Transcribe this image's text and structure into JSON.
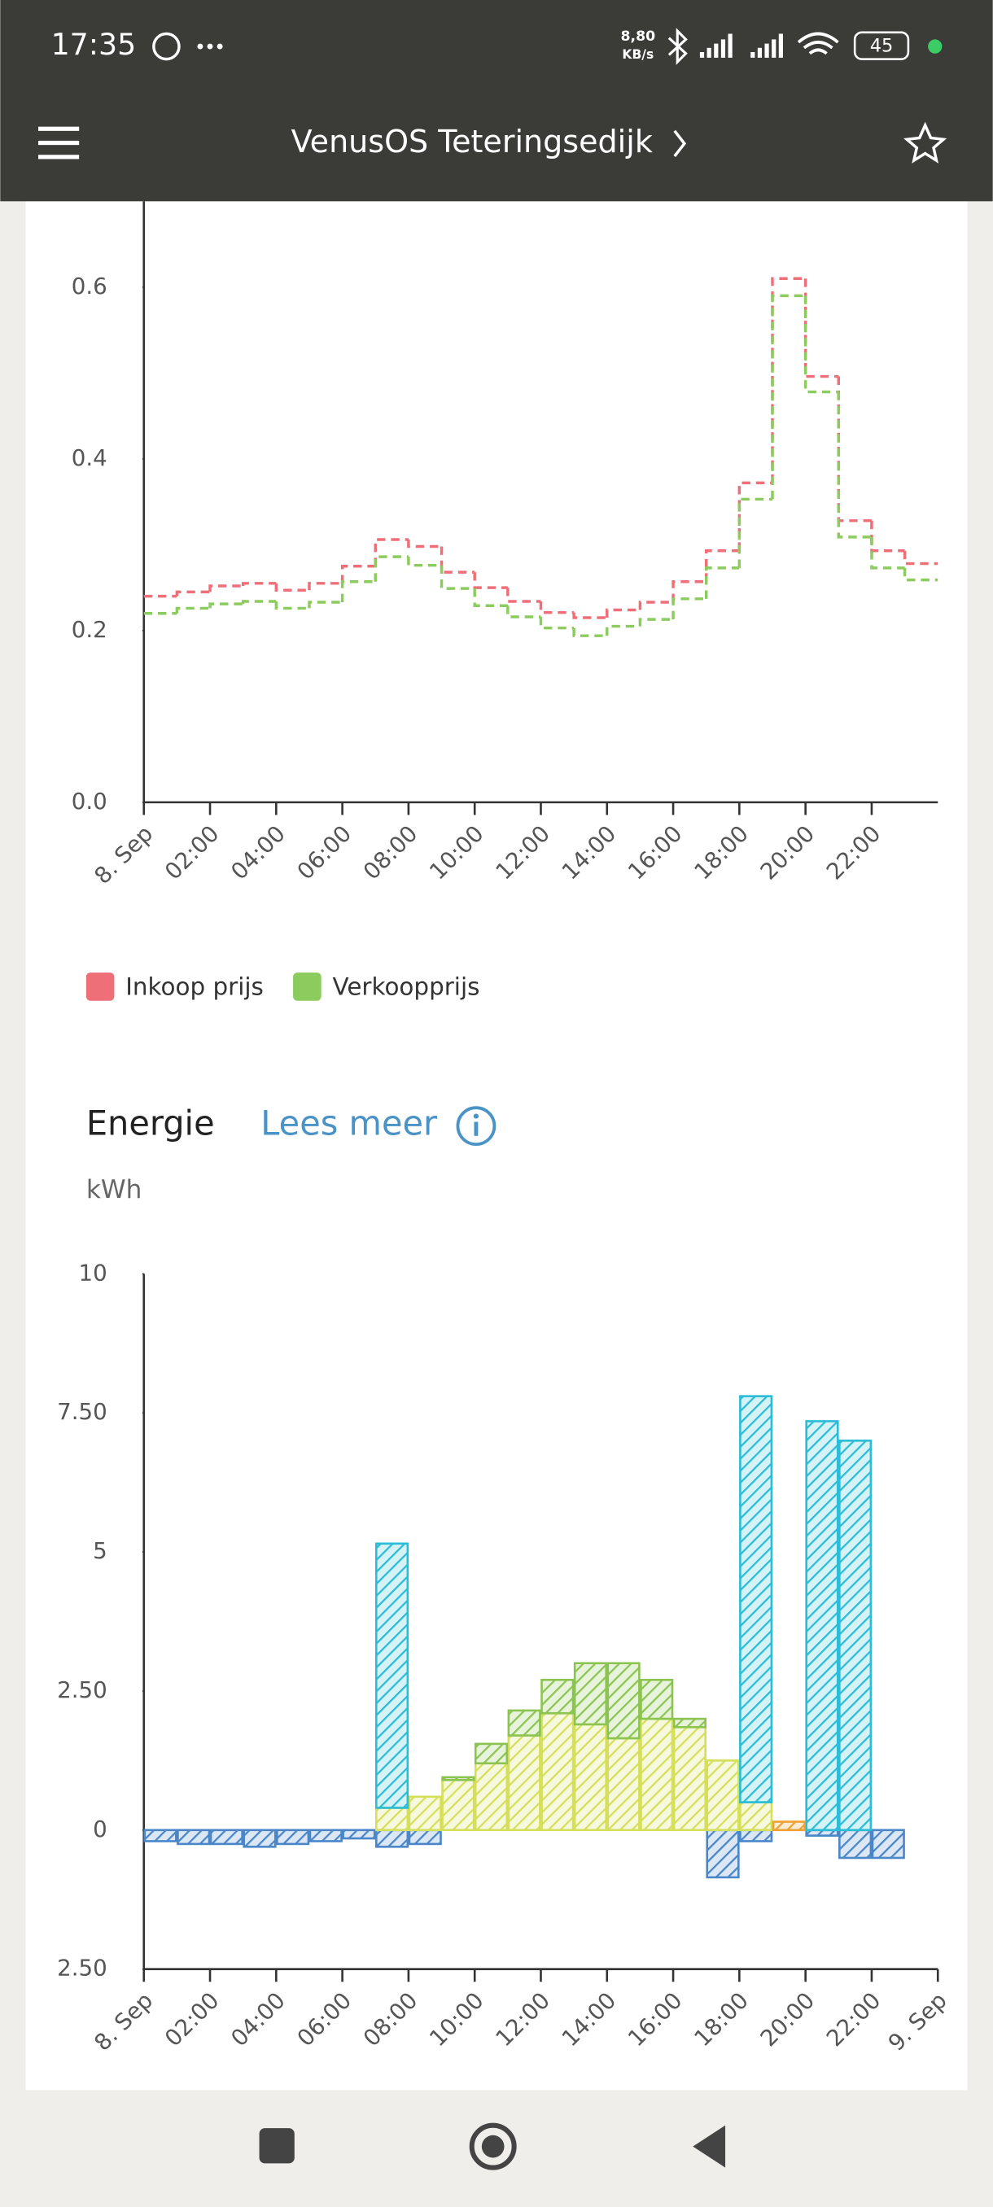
{
  "status_bar": {
    "time": "17:35",
    "speed": "8,80",
    "speed_unit": "KB/s",
    "battery": "45"
  },
  "app_bar": {
    "title": "VenusOS Teteringsedijk"
  },
  "chart_data": [
    {
      "type": "step",
      "x": [
        0,
        1,
        2,
        3,
        4,
        5,
        6,
        7,
        8,
        9,
        10,
        11,
        12,
        13,
        14,
        15,
        16,
        17,
        18,
        19,
        20,
        21,
        22,
        23
      ],
      "xlim": [
        0,
        24
      ],
      "xticks": [
        {
          "value": 0,
          "label": "8. Sep"
        },
        {
          "value": 2,
          "label": "02:00"
        },
        {
          "value": 4,
          "label": "04:00"
        },
        {
          "value": 6,
          "label": "06:00"
        },
        {
          "value": 8,
          "label": "08:00"
        },
        {
          "value": 10,
          "label": "10:00"
        },
        {
          "value": 12,
          "label": "12:00"
        },
        {
          "value": 14,
          "label": "14:00"
        },
        {
          "value": 16,
          "label": "16:00"
        },
        {
          "value": 18,
          "label": "18:00"
        },
        {
          "value": 20,
          "label": "20:00"
        },
        {
          "value": 22,
          "label": "22:00"
        }
      ],
      "ylim": [
        0,
        0.7
      ],
      "yticks": [
        {
          "value": 0,
          "label": "0.0"
        },
        0.2,
        0.4,
        0.6
      ],
      "line_style": "dashed",
      "series": [
        {
          "name": "Inkoop prijs",
          "color": "#ef6f78",
          "values": [
            0.24,
            0.245,
            0.252,
            0.255,
            0.247,
            0.255,
            0.275,
            0.306,
            0.298,
            0.268,
            0.25,
            0.234,
            0.221,
            0.215,
            0.224,
            0.233,
            0.257,
            0.293,
            0.372,
            0.61,
            0.496,
            0.328,
            0.293,
            0.278
          ]
        },
        {
          "name": "Verkoopprijs",
          "color": "#8ccb5e",
          "values": [
            0.22,
            0.226,
            0.231,
            0.234,
            0.226,
            0.233,
            0.257,
            0.286,
            0.276,
            0.249,
            0.229,
            0.216,
            0.203,
            0.194,
            0.205,
            0.213,
            0.237,
            0.273,
            0.353,
            0.59,
            0.478,
            0.309,
            0.273,
            0.259
          ]
        }
      ]
    },
    {
      "type": "stacked_bar",
      "title": "Energie",
      "link": "Lees meer",
      "ylabel": "kWh",
      "x": [
        0,
        1,
        2,
        3,
        4,
        5,
        6,
        7,
        8,
        9,
        10,
        11,
        12,
        13,
        14,
        15,
        16,
        17,
        18,
        19,
        20,
        21,
        22,
        23
      ],
      "xlim": [
        0,
        24
      ],
      "xticks": [
        {
          "value": 0,
          "label": "8. Sep"
        },
        {
          "value": 2,
          "label": "02:00"
        },
        {
          "value": 4,
          "label": "04:00"
        },
        {
          "value": 6,
          "label": "06:00"
        },
        {
          "value": 8,
          "label": "08:00"
        },
        {
          "value": 10,
          "label": "10:00"
        },
        {
          "value": 12,
          "label": "12:00"
        },
        {
          "value": 14,
          "label": "14:00"
        },
        {
          "value": 16,
          "label": "16:00"
        },
        {
          "value": 18,
          "label": "18:00"
        },
        {
          "value": 20,
          "label": "20:00"
        },
        {
          "value": 22,
          "label": "22:00"
        },
        {
          "value": 24,
          "label": "9. Sep"
        }
      ],
      "ylim": [
        -2.5,
        10
      ],
      "yticks": [
        {
          "value": -2.5,
          "label": "2.50"
        },
        0,
        {
          "value": 2.5,
          "label": "2.50"
        },
        5,
        {
          "value": 7.5,
          "label": "7.50"
        },
        10
      ],
      "series": [
        {
          "color": "#4a86c8",
          "values": [
            -0.2,
            -0.25,
            -0.25,
            -0.3,
            -0.25,
            -0.2,
            -0.15,
            -0.3,
            -0.25,
            null,
            null,
            null,
            null,
            null,
            null,
            null,
            null,
            -0.85,
            -0.2,
            null,
            -0.1,
            -0.5,
            -0.5,
            null
          ]
        },
        {
          "color": "#d5df5a",
          "values": [
            null,
            null,
            null,
            null,
            null,
            null,
            null,
            0.4,
            0.6,
            0.9,
            1.2,
            1.7,
            2.1,
            1.9,
            1.65,
            2.0,
            1.85,
            1.25,
            0.5,
            null,
            null,
            null,
            null,
            null
          ]
        },
        {
          "color": "#8cc452",
          "values": [
            null,
            null,
            null,
            null,
            null,
            null,
            null,
            null,
            null,
            0.05,
            0.35,
            0.45,
            0.6,
            1.1,
            1.35,
            0.7,
            0.15,
            null,
            null,
            null,
            null,
            null,
            null,
            null
          ]
        },
        {
          "color": "#2bbcd8",
          "values": [
            null,
            null,
            null,
            null,
            null,
            null,
            null,
            4.75,
            null,
            null,
            null,
            null,
            null,
            null,
            null,
            null,
            null,
            null,
            7.3,
            null,
            7.35,
            7.0,
            null,
            null
          ]
        },
        {
          "color": "#f0a030",
          "values": [
            null,
            null,
            null,
            null,
            null,
            null,
            null,
            null,
            null,
            null,
            null,
            null,
            null,
            null,
            null,
            null,
            null,
            null,
            null,
            0.15,
            null,
            null,
            null,
            null
          ]
        }
      ]
    }
  ]
}
